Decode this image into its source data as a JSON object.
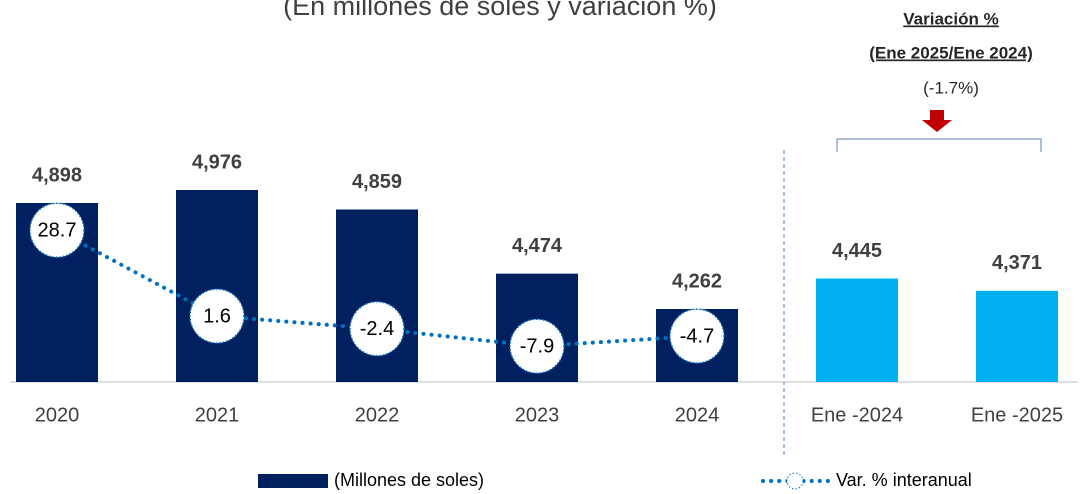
{
  "chart_data": {
    "type": "bar_line",
    "title": "(En millones de soles y variación %)",
    "categories": [
      "2020",
      "2021",
      "2022",
      "2023",
      "2024",
      "Ene -2024",
      "Ene -2025"
    ],
    "ylim": [
      3824,
      5204
    ],
    "y2lim": [
      -19.2,
      53.4
    ],
    "series": [
      {
        "name": "(Millones de soles)",
        "color": "#002060",
        "colors": [
          "#002060",
          "#002060",
          "#002060",
          "#002060",
          "#002060",
          "#00b0f0",
          "#00b0f0"
        ],
        "values": [
          4898,
          4976,
          4859,
          4474,
          4262,
          4445,
          4371
        ],
        "value_labels": [
          "4,898",
          "4,976",
          "4,859",
          "4,474",
          "4,262",
          "4,445",
          "4,371"
        ]
      },
      {
        "name": "Var. % interanual",
        "color": "#0070c0",
        "axis": "y2",
        "values": [
          28.7,
          1.6,
          -2.4,
          -7.9,
          -4.7,
          null,
          null
        ]
      }
    ],
    "annotations": [
      "Variación %",
      "(Ene 2025/Ene 2024)",
      "(-1.7%)"
    ]
  }
}
